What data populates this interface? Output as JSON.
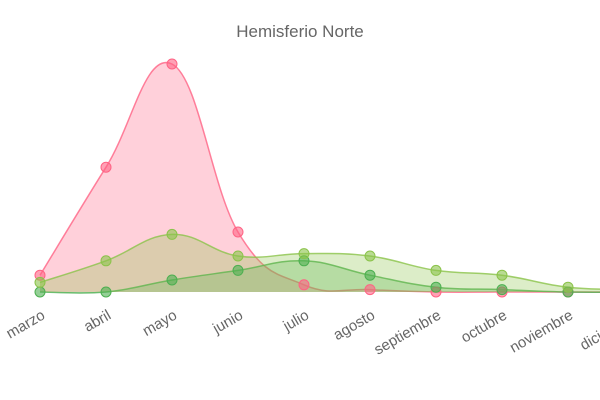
{
  "chart_data": {
    "type": "area",
    "title": "Hemisferio Norte",
    "categories": [
      "marzo",
      "abril",
      "mayo",
      "junio",
      "julio",
      "agosto",
      "septiembre",
      "octubre",
      "noviembre",
      "diciembre"
    ],
    "ylim": [
      0,
      100
    ],
    "series": [
      {
        "color": "#ff6384",
        "values": [
          7,
          52,
          95,
          25,
          3,
          1,
          0,
          0,
          0,
          0
        ]
      },
      {
        "color": "#4caf50",
        "values": [
          0,
          0,
          5,
          9,
          13,
          7,
          2,
          1,
          0,
          0
        ]
      },
      {
        "color": "#8bc34a",
        "values": [
          4,
          13,
          24,
          15,
          16,
          15,
          9,
          7,
          2,
          1
        ]
      }
    ]
  }
}
